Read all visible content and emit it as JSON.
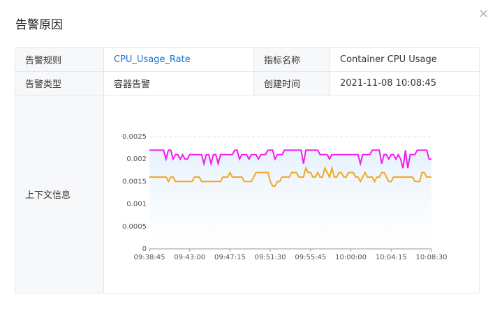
{
  "dialog": {
    "title": "告警原因",
    "close": "×"
  },
  "table": {
    "rows": [
      [
        "告警规则",
        "CPU_Usage_Rate",
        "指标名称",
        "Container CPU Usage"
      ],
      [
        "告警类型",
        "容器告警",
        "创建时间",
        "2021-11-08 10:08:45"
      ],
      [
        "上下文信息"
      ]
    ]
  },
  "chart_data": {
    "type": "line",
    "categories": [
      "09:38:45",
      null,
      null,
      null,
      null,
      null,
      null,
      null,
      null,
      null,
      null,
      null,
      null,
      null,
      null,
      null,
      null,
      "09:43:00",
      null,
      null,
      null,
      null,
      null,
      null,
      null,
      null,
      null,
      null,
      null,
      null,
      null,
      null,
      null,
      null,
      "09:47:15",
      null,
      null,
      null,
      null,
      null,
      null,
      null,
      null,
      null,
      null,
      null,
      null,
      null,
      null,
      null,
      null,
      "09:51:30",
      null,
      null,
      null,
      null,
      null,
      null,
      null,
      null,
      null,
      null,
      null,
      null,
      null,
      null,
      null,
      null,
      "09:55:45",
      null,
      null,
      null,
      null,
      null,
      null,
      null,
      null,
      null,
      null,
      null,
      null,
      null,
      null,
      null,
      null,
      "10:00:00",
      null,
      null,
      null,
      null,
      null,
      null,
      null,
      null,
      null,
      null,
      null,
      null,
      null,
      null,
      null,
      null,
      "10:04:15",
      null,
      null,
      null,
      null,
      null,
      null,
      null,
      null,
      null,
      null,
      null,
      null,
      null,
      null,
      null,
      null,
      "10:08:30"
    ],
    "series": [
      {
        "color": "#f21bf2",
        "values": [
          0.0022,
          0.0022,
          0.0022,
          0.0022,
          0.0022,
          0.0022,
          0.0022,
          0.002,
          0.0022,
          0.0022,
          0.002,
          0.0021,
          0.0021,
          0.002,
          0.0021,
          0.002,
          0.002,
          0.0021,
          0.0021,
          0.0021,
          0.0021,
          0.0021,
          0.0021,
          0.0019,
          0.0021,
          0.0021,
          0.0019,
          0.0021,
          0.0021,
          0.0019,
          0.0021,
          0.0021,
          0.0021,
          0.0021,
          0.0021,
          0.0021,
          0.0022,
          0.0022,
          0.002,
          0.0021,
          0.0021,
          0.0021,
          0.002,
          0.0021,
          0.0021,
          0.0021,
          0.002,
          0.0021,
          0.0021,
          0.0021,
          0.0022,
          0.0022,
          0.0022,
          0.002,
          0.0021,
          0.0021,
          0.0021,
          0.0022,
          0.0022,
          0.0022,
          0.0022,
          0.0022,
          0.0022,
          0.0022,
          0.0022,
          0.0019,
          0.0022,
          0.0022,
          0.0022,
          0.0022,
          0.0022,
          0.0022,
          0.0021,
          0.0021,
          0.0021,
          0.0021,
          0.002,
          0.0021,
          0.0021,
          0.0021,
          0.0021,
          0.0021,
          0.0021,
          0.0021,
          0.0021,
          0.0021,
          0.0021,
          0.0021,
          0.0021,
          0.0019,
          0.0021,
          0.0021,
          0.0021,
          0.0021,
          0.0022,
          0.0022,
          0.0022,
          0.0022,
          0.0019,
          0.0021,
          0.0021,
          0.002,
          0.0021,
          0.0021,
          0.002,
          0.0021,
          0.002,
          0.0018,
          0.0022,
          0.0018,
          0.0021,
          0.0021,
          0.0021,
          0.0022,
          0.0022,
          0.0022,
          0.0022,
          0.0022,
          0.002,
          0.002
        ]
      },
      {
        "color": "#f5a623",
        "values": [
          0.0016,
          0.0016,
          0.0016,
          0.0016,
          0.0016,
          0.0016,
          0.0016,
          0.0016,
          0.0015,
          0.0016,
          0.0016,
          0.0015,
          0.0015,
          0.0015,
          0.0015,
          0.0015,
          0.0015,
          0.0015,
          0.0015,
          0.0016,
          0.0016,
          0.0016,
          0.0015,
          0.0015,
          0.0015,
          0.0015,
          0.0015,
          0.0015,
          0.0015,
          0.0015,
          0.0015,
          0.0016,
          0.0016,
          0.0016,
          0.0017,
          0.0016,
          0.0016,
          0.0016,
          0.0016,
          0.0016,
          0.0015,
          0.0015,
          0.0015,
          0.0015,
          0.0016,
          0.0017,
          0.0017,
          0.0017,
          0.0017,
          0.0017,
          0.0017,
          0.0015,
          0.0014,
          0.0014,
          0.0015,
          0.0015,
          0.0016,
          0.0016,
          0.0016,
          0.0016,
          0.0017,
          0.0017,
          0.0017,
          0.0016,
          0.0016,
          0.0016,
          0.0018,
          0.0017,
          0.0017,
          0.0016,
          0.0016,
          0.0017,
          0.0016,
          0.0016,
          0.0018,
          0.0017,
          0.0016,
          0.0018,
          0.0016,
          0.0016,
          0.0017,
          0.0017,
          0.0016,
          0.0016,
          0.0017,
          0.0017,
          0.0017,
          0.0016,
          0.0016,
          0.0015,
          0.0016,
          0.0017,
          0.0016,
          0.0016,
          0.0016,
          0.0015,
          0.0016,
          0.0016,
          0.0017,
          0.0017,
          0.0016,
          0.0015,
          0.0015,
          0.0016,
          0.0016,
          0.0016,
          0.0016,
          0.0016,
          0.0016,
          0.0016,
          0.0016,
          0.0016,
          0.0015,
          0.0015,
          0.0015,
          0.0017,
          0.0017,
          0.0016,
          0.0016,
          0.0016
        ]
      }
    ],
    "ylim": [
      0,
      0.0025
    ],
    "yticks": [
      0,
      0.0005,
      0.001,
      0.0015,
      0.002,
      0.0025
    ],
    "grid": true,
    "area_fill": "#e6f2fc"
  }
}
